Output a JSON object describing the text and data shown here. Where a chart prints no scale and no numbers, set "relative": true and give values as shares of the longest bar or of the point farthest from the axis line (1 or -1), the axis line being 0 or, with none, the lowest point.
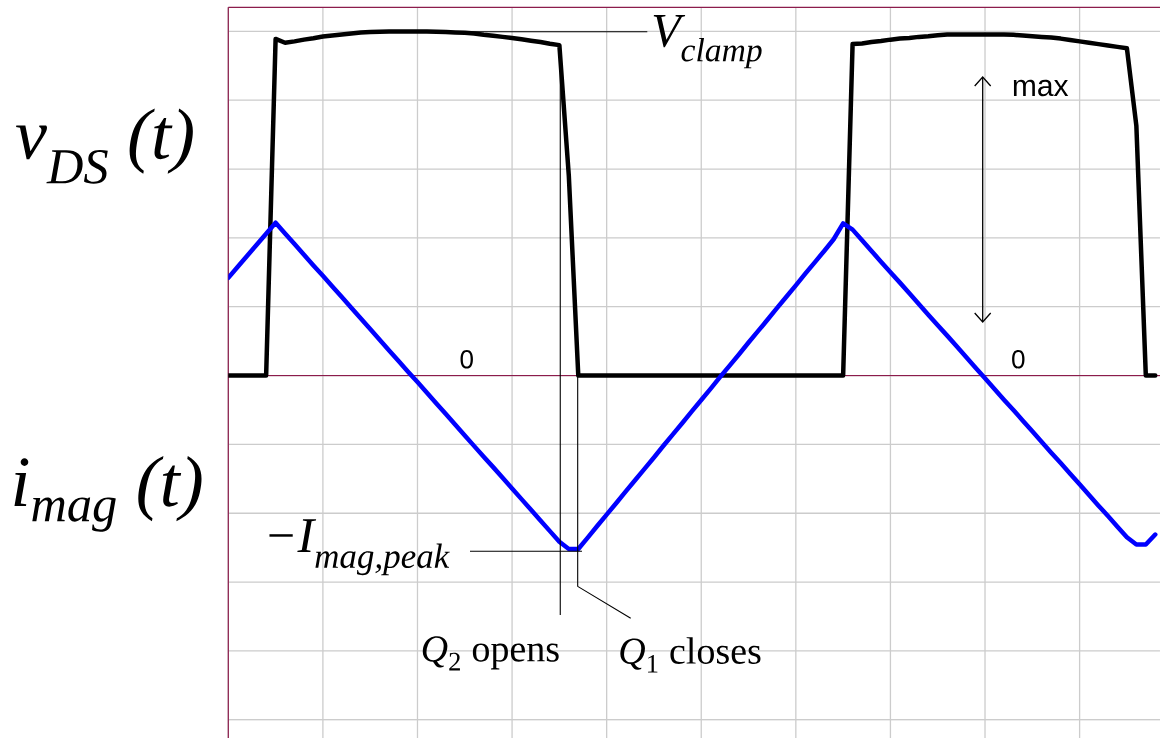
{
  "chart_data": {
    "type": "line",
    "categories": [
      null,
      null,
      null,
      null,
      null,
      null,
      null,
      null,
      null,
      null,
      null,
      null,
      null,
      null,
      null,
      null,
      null,
      null,
      null,
      null,
      null,
      null,
      null,
      null,
      null,
      null,
      null,
      null,
      null,
      null,
      null,
      null,
      null,
      null,
      null,
      null,
      null,
      null,
      null,
      null,
      null,
      null,
      null,
      null,
      null,
      null,
      null,
      null,
      null,
      null,
      null,
      null,
      null,
      null,
      null,
      null,
      null,
      null,
      null,
      null,
      null,
      null,
      null,
      null,
      null,
      null,
      null,
      null,
      null,
      null,
      null,
      null,
      null,
      null,
      null,
      null,
      null,
      null,
      null,
      null,
      null,
      null,
      null,
      null,
      null,
      null,
      null,
      null,
      null,
      null,
      null,
      null,
      null,
      null,
      null,
      null,
      null,
      null,
      null
    ],
    "series": [
      {
        "color": "#000000",
        "values": [
          0,
          0,
          0,
          0,
          0,
          0.978,
          0.967,
          0.971,
          0.976,
          0.98,
          0.985,
          0.988,
          0.991,
          0.994,
          0.997,
          0.998,
          0.999,
          1.0,
          1.0,
          1.0,
          1.0,
          1.0,
          0.999,
          0.998,
          0.997,
          0.996,
          0.994,
          0.99,
          0.987,
          0.984,
          0.981,
          0.977,
          0.973,
          0.969,
          0.964,
          0.96,
          0.58,
          0,
          0,
          0,
          0,
          0,
          0,
          0,
          0,
          0,
          0,
          0,
          0,
          0,
          0,
          0,
          0,
          0,
          0,
          0,
          0,
          0,
          0,
          0,
          0,
          0,
          0,
          0,
          0,
          0,
          0.963,
          0.965,
          0.969,
          0.972,
          0.976,
          0.979,
          0.981,
          0.984,
          0.986,
          0.989,
          0.991,
          0.991,
          0.991,
          0.991,
          0.991,
          0.991,
          0.991,
          0.99,
          0.988,
          0.986,
          0.984,
          0.982,
          0.979,
          0.975,
          0.971,
          0.967,
          0.963,
          0.959,
          0.955,
          0.951,
          0.726,
          0,
          0
        ]
      },
      {
        "color": "#0000ff",
        "values": [
          0.284,
          0.316,
          0.348,
          0.38,
          0.412,
          0.444,
          0.413,
          0.382,
          0.351,
          0.32,
          0.29,
          0.259,
          0.228,
          0.197,
          0.166,
          0.135,
          0.104,
          0.073,
          0.042,
          0.011,
          -0.019,
          -0.05,
          -0.081,
          -0.112,
          -0.143,
          -0.174,
          -0.205,
          -0.236,
          -0.266,
          -0.297,
          -0.328,
          -0.359,
          -0.39,
          -0.421,
          -0.452,
          -0.483,
          -0.504,
          -0.504,
          -0.471,
          -0.437,
          -0.404,
          -0.371,
          -0.337,
          -0.304,
          -0.271,
          -0.238,
          -0.204,
          -0.171,
          -0.138,
          -0.104,
          -0.071,
          -0.038,
          -0.004,
          0.029,
          0.062,
          0.096,
          0.129,
          0.162,
          0.196,
          0.229,
          0.262,
          0.296,
          0.329,
          0.362,
          0.396,
          0.442,
          0.424,
          0.393,
          0.362,
          0.331,
          0.3,
          0.27,
          0.239,
          0.208,
          0.177,
          0.146,
          0.116,
          0.085,
          0.054,
          0.023,
          -0.008,
          -0.039,
          -0.07,
          -0.1,
          -0.131,
          -0.162,
          -0.193,
          -0.224,
          -0.254,
          -0.285,
          -0.316,
          -0.347,
          -0.378,
          -0.408,
          -0.439,
          -0.47,
          -0.491,
          -0.491,
          -0.462
        ]
      }
    ],
    "relative": true,
    "grid": true,
    "ref_lines": [
      {
        "axis": "y",
        "value": 0,
        "color": "#8c1c4c"
      }
    ],
    "annotations": [
      "V$_{clamp}$",
      "max",
      "0",
      "0",
      "−I$_{mag,peak}$",
      "*Q*$_{2}$ opens",
      "*Q*$_{1}$ closes",
      "v$_{DS}$ (t)",
      "i$_{mag}$ (t)"
    ]
  }
}
